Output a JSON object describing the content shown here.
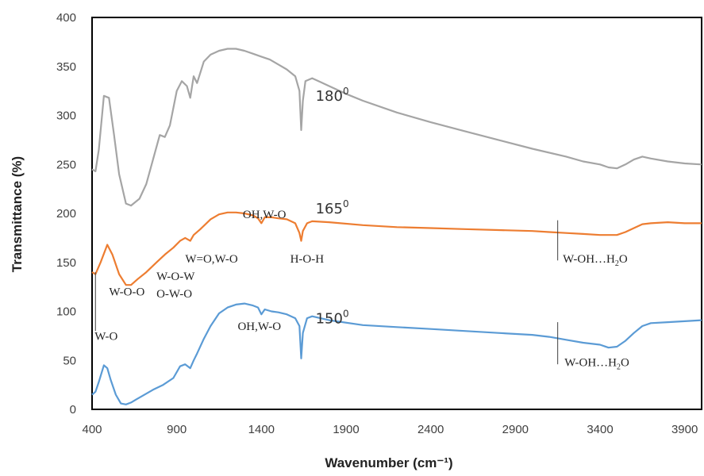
{
  "chart_data": {
    "type": "line",
    "xlabel": "Wavenumber (cm⁻¹)",
    "ylabel": "Transmittance (%)",
    "xlim": [
      400,
      4000
    ],
    "ylim": [
      0,
      400
    ],
    "x_ticks": [
      400,
      900,
      1400,
      1900,
      2400,
      2900,
      3400,
      3900
    ],
    "y_ticks": [
      0,
      50,
      100,
      150,
      200,
      250,
      300,
      350,
      400
    ],
    "grid": false,
    "legend": "none",
    "series": [
      {
        "name": "180⁰",
        "color": "#a5a5a5",
        "x": [
          400,
          420,
          440,
          470,
          500,
          530,
          560,
          600,
          630,
          680,
          720,
          760,
          800,
          830,
          860,
          900,
          930,
          960,
          980,
          1000,
          1020,
          1060,
          1100,
          1150,
          1200,
          1250,
          1300,
          1350,
          1400,
          1450,
          1500,
          1550,
          1600,
          1625,
          1635,
          1645,
          1660,
          1700,
          1750,
          1800,
          1900,
          2000,
          2200,
          2400,
          2600,
          2800,
          3000,
          3200,
          3300,
          3400,
          3450,
          3500,
          3550,
          3600,
          3650,
          3700,
          3800,
          3900,
          4000
        ],
        "y": [
          245,
          243,
          265,
          320,
          318,
          280,
          240,
          210,
          208,
          215,
          230,
          255,
          280,
          278,
          290,
          325,
          335,
          330,
          318,
          340,
          333,
          355,
          362,
          366,
          368,
          368,
          366,
          363,
          360,
          357,
          352,
          347,
          340,
          325,
          285,
          315,
          335,
          338,
          334,
          330,
          322,
          315,
          303,
          293,
          284,
          275,
          266,
          258,
          253,
          250,
          247,
          246,
          250,
          255,
          258,
          256,
          253,
          251,
          250
        ]
      },
      {
        "name": "165⁰",
        "color": "#ed7d31",
        "x": [
          400,
          420,
          450,
          490,
          520,
          560,
          600,
          630,
          670,
          720,
          780,
          830,
          880,
          920,
          950,
          980,
          1000,
          1040,
          1100,
          1150,
          1200,
          1250,
          1300,
          1350,
          1380,
          1400,
          1420,
          1460,
          1500,
          1550,
          1600,
          1625,
          1635,
          1645,
          1670,
          1700,
          1800,
          2000,
          2200,
          2400,
          2600,
          2800,
          3000,
          3100,
          3200,
          3300,
          3400,
          3500,
          3550,
          3600,
          3650,
          3700,
          3800,
          3900,
          4000
        ],
        "y": [
          140,
          138,
          150,
          168,
          158,
          138,
          127,
          127,
          133,
          140,
          150,
          158,
          165,
          172,
          175,
          172,
          178,
          184,
          194,
          199,
          201,
          201,
          200,
          198,
          195,
          190,
          196,
          196,
          195,
          194,
          190,
          180,
          172,
          182,
          190,
          192,
          191,
          188,
          186,
          185,
          184,
          183,
          182,
          181,
          180,
          179,
          178,
          178,
          181,
          185,
          189,
          190,
          191,
          190,
          190
        ]
      },
      {
        "name": "150⁰",
        "color": "#5b9bd5",
        "x": [
          400,
          420,
          440,
          470,
          490,
          510,
          540,
          570,
          600,
          630,
          660,
          700,
          760,
          820,
          880,
          920,
          950,
          980,
          1000,
          1020,
          1060,
          1100,
          1150,
          1200,
          1250,
          1300,
          1350,
          1380,
          1400,
          1420,
          1460,
          1500,
          1550,
          1600,
          1625,
          1635,
          1645,
          1670,
          1700,
          1800,
          2000,
          2200,
          2400,
          2600,
          2800,
          3000,
          3100,
          3200,
          3300,
          3400,
          3450,
          3500,
          3550,
          3600,
          3650,
          3700,
          3800,
          3900,
          4000
        ],
        "y": [
          15,
          18,
          28,
          45,
          42,
          30,
          15,
          6,
          5,
          7,
          10,
          14,
          20,
          25,
          32,
          44,
          46,
          42,
          50,
          57,
          72,
          85,
          98,
          104,
          107,
          108,
          106,
          104,
          97,
          102,
          100,
          99,
          97,
          93,
          85,
          52,
          78,
          93,
          95,
          91,
          86,
          84,
          82,
          80,
          78,
          76,
          74,
          71,
          68,
          66,
          63,
          64,
          70,
          78,
          85,
          88,
          89,
          90,
          91
        ]
      }
    ],
    "series_labels": [
      {
        "text": "180",
        "sup": "0",
        "x": 1720,
        "y": 315
      },
      {
        "text": "165",
        "sup": "0",
        "x": 1720,
        "y": 200
      },
      {
        "text": "150",
        "sup": "0",
        "x": 1720,
        "y": 88
      }
    ],
    "annotations": [
      {
        "text": "OH,W-O",
        "x": 1290,
        "y": 195
      },
      {
        "text": "H-O-H",
        "x": 1570,
        "y": 150
      },
      {
        "text": "W=O,W-O",
        "x": 950,
        "y": 150
      },
      {
        "text": "W-O-W",
        "x": 780,
        "y": 132
      },
      {
        "text": "O-W-O",
        "x": 780,
        "y": 114
      },
      {
        "text": "W-O-O",
        "x": 500,
        "y": 116
      },
      {
        "text": "W-O",
        "x": 415,
        "y": 71
      },
      {
        "text": "OH,W-O",
        "x": 1260,
        "y": 81
      },
      {
        "text": "W-OH…H",
        "sub": "2",
        "tail": "O",
        "x": 3180,
        "y": 150
      },
      {
        "text": "W-OH…H",
        "sub": "2",
        "tail": "O",
        "x": 3190,
        "y": 44
      }
    ],
    "markers": [
      {
        "x": 3150,
        "y1": 152,
        "y2": 193
      },
      {
        "x": 3150,
        "y1": 46,
        "y2": 89
      },
      {
        "x": 420,
        "y1": 140,
        "y2": 80
      }
    ]
  }
}
